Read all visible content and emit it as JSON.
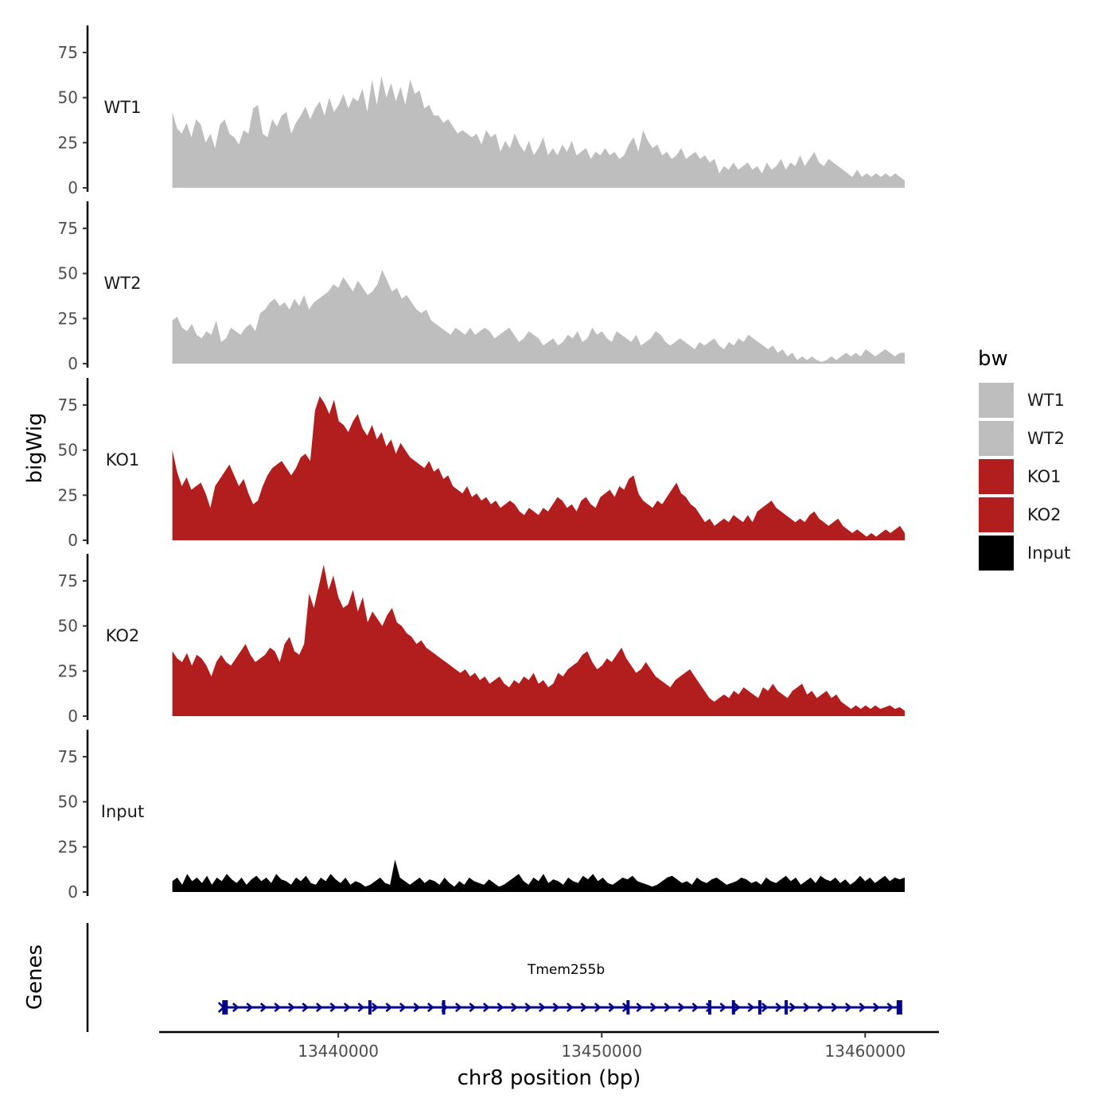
{
  "chart_data": {
    "type": "area",
    "title": "",
    "ylabel": "bigWig",
    "xlabel": "chr8 position (bp)",
    "genes_panel_label": "Genes",
    "ylim": [
      0,
      90
    ],
    "y_ticks": [
      0,
      25,
      50,
      75
    ],
    "x_range": [
      13433200,
      13462800
    ],
    "x_ticks": [
      13440000,
      13450000,
      13460000
    ],
    "x_tick_labels": [
      "13440000",
      "13450000",
      "13460000"
    ],
    "legend": {
      "title": "bw",
      "position": "right",
      "entries": [
        {
          "label": "WT1",
          "color": "#bebebe"
        },
        {
          "label": "WT2",
          "color": "#bebebe"
        },
        {
          "label": "KO1",
          "color": "#b21e1e"
        },
        {
          "label": "KO2",
          "color": "#b21e1e"
        },
        {
          "label": "Input",
          "color": "#000000"
        }
      ]
    },
    "tracks": [
      {
        "name": "WT1",
        "color": "#bebebe",
        "start": 13433700,
        "end": 13461500,
        "values": [
          42,
          33,
          30,
          36,
          28,
          38,
          35,
          25,
          30,
          22,
          35,
          38,
          30,
          28,
          24,
          32,
          30,
          44,
          46,
          30,
          28,
          38,
          34,
          40,
          42,
          30,
          36,
          40,
          45,
          38,
          44,
          48,
          40,
          50,
          42,
          46,
          52,
          44,
          50,
          48,
          55,
          42,
          60,
          46,
          62,
          50,
          58,
          48,
          56,
          46,
          60,
          52,
          54,
          44,
          46,
          40,
          40,
          36,
          38,
          34,
          30,
          32,
          30,
          28,
          30,
          24,
          32,
          28,
          30,
          20,
          26,
          22,
          30,
          24,
          20,
          26,
          18,
          22,
          28,
          18,
          22,
          18,
          24,
          20,
          26,
          18,
          20,
          22,
          16,
          20,
          18,
          22,
          18,
          20,
          16,
          18,
          24,
          28,
          20,
          32,
          26,
          22,
          24,
          18,
          20,
          16,
          18,
          22,
          16,
          18,
          20,
          16,
          18,
          14,
          16,
          8,
          12,
          10,
          14,
          10,
          12,
          14,
          10,
          12,
          8,
          14,
          10,
          12,
          16,
          10,
          14,
          12,
          18,
          12,
          16,
          20,
          14,
          12,
          16,
          14,
          12,
          10,
          8,
          6,
          10,
          6,
          8,
          6,
          8,
          6,
          8,
          6,
          8,
          6,
          4
        ]
      },
      {
        "name": "WT2",
        "color": "#bebebe",
        "start": 13433700,
        "end": 13461500,
        "values": [
          24,
          26,
          20,
          18,
          22,
          16,
          14,
          18,
          16,
          24,
          12,
          14,
          20,
          18,
          16,
          20,
          22,
          18,
          28,
          30,
          34,
          36,
          32,
          34,
          30,
          36,
          32,
          38,
          30,
          34,
          36,
          38,
          40,
          44,
          42,
          48,
          44,
          40,
          46,
          42,
          38,
          40,
          44,
          52,
          46,
          40,
          42,
          36,
          38,
          34,
          30,
          28,
          30,
          24,
          22,
          20,
          18,
          16,
          20,
          18,
          16,
          20,
          16,
          18,
          20,
          18,
          14,
          16,
          18,
          20,
          16,
          12,
          14,
          18,
          16,
          14,
          10,
          12,
          14,
          10,
          12,
          16,
          14,
          18,
          12,
          14,
          20,
          16,
          18,
          14,
          12,
          18,
          16,
          14,
          12,
          16,
          10,
          12,
          14,
          18,
          16,
          12,
          10,
          12,
          14,
          12,
          10,
          8,
          12,
          10,
          12,
          14,
          10,
          8,
          12,
          10,
          14,
          12,
          16,
          14,
          12,
          10,
          8,
          10,
          6,
          8,
          4,
          6,
          2,
          4,
          2,
          4,
          2,
          1,
          2,
          4,
          2,
          4,
          6,
          4,
          6,
          4,
          8,
          6,
          4,
          6,
          8,
          6,
          4,
          6,
          6
        ]
      },
      {
        "name": "KO1",
        "color": "#b21e1e",
        "start": 13433700,
        "end": 13461500,
        "values": [
          50,
          38,
          30,
          35,
          28,
          30,
          32,
          26,
          18,
          30,
          34,
          38,
          42,
          36,
          30,
          34,
          26,
          20,
          22,
          30,
          36,
          40,
          42,
          44,
          40,
          36,
          40,
          46,
          48,
          44,
          72,
          80,
          76,
          70,
          78,
          66,
          64,
          60,
          66,
          70,
          62,
          58,
          64,
          56,
          60,
          52,
          56,
          48,
          54,
          50,
          46,
          44,
          42,
          40,
          44,
          38,
          40,
          34,
          36,
          30,
          28,
          26,
          30,
          24,
          26,
          22,
          24,
          20,
          22,
          18,
          20,
          22,
          20,
          16,
          14,
          18,
          16,
          14,
          18,
          16,
          20,
          24,
          22,
          18,
          20,
          16,
          22,
          24,
          20,
          18,
          24,
          26,
          28,
          24,
          30,
          28,
          34,
          36,
          26,
          22,
          20,
          18,
          22,
          20,
          24,
          28,
          32,
          26,
          24,
          20,
          18,
          14,
          10,
          12,
          8,
          10,
          12,
          10,
          14,
          12,
          10,
          14,
          10,
          16,
          18,
          20,
          22,
          18,
          16,
          14,
          12,
          10,
          12,
          10,
          14,
          16,
          12,
          10,
          8,
          10,
          12,
          8,
          6,
          4,
          6,
          4,
          2,
          4,
          2,
          4,
          6,
          4,
          6,
          8,
          4
        ]
      },
      {
        "name": "KO2",
        "color": "#b21e1e",
        "start": 13433700,
        "end": 13461500,
        "values": [
          36,
          32,
          30,
          35,
          28,
          34,
          32,
          28,
          22,
          30,
          34,
          30,
          28,
          32,
          36,
          40,
          34,
          30,
          32,
          34,
          38,
          36,
          30,
          40,
          44,
          36,
          34,
          40,
          68,
          60,
          72,
          84,
          70,
          78,
          66,
          60,
          62,
          70,
          58,
          66,
          52,
          58,
          54,
          50,
          56,
          60,
          52,
          50,
          46,
          44,
          40,
          42,
          38,
          36,
          34,
          32,
          30,
          28,
          26,
          24,
          26,
          22,
          24,
          20,
          22,
          18,
          20,
          22,
          18,
          16,
          20,
          18,
          22,
          20,
          24,
          18,
          20,
          16,
          18,
          24,
          22,
          26,
          28,
          30,
          34,
          36,
          30,
          26,
          28,
          32,
          30,
          34,
          38,
          32,
          28,
          24,
          26,
          30,
          26,
          22,
          20,
          18,
          16,
          20,
          22,
          24,
          26,
          22,
          18,
          14,
          10,
          8,
          10,
          12,
          10,
          14,
          12,
          16,
          14,
          12,
          10,
          16,
          14,
          18,
          14,
          12,
          10,
          14,
          16,
          18,
          12,
          14,
          10,
          12,
          14,
          10,
          12,
          8,
          6,
          4,
          6,
          4,
          6,
          4,
          6,
          4,
          5,
          6,
          4,
          5,
          3
        ]
      },
      {
        "name": "Input",
        "color": "#000000",
        "start": 13433700,
        "end": 13461500,
        "values": [
          6,
          8,
          4,
          10,
          6,
          8,
          5,
          9,
          4,
          8,
          6,
          10,
          7,
          5,
          8,
          4,
          7,
          9,
          6,
          8,
          5,
          10,
          7,
          6,
          4,
          8,
          6,
          9,
          5,
          4,
          8,
          6,
          10,
          7,
          5,
          8,
          4,
          6,
          5,
          3,
          4,
          6,
          8,
          5,
          4,
          18,
          8,
          6,
          4,
          6,
          8,
          5,
          7,
          6,
          4,
          8,
          5,
          3,
          6,
          4,
          8,
          6,
          5,
          4,
          7,
          5,
          3,
          4,
          6,
          8,
          10,
          6,
          4,
          8,
          6,
          10,
          5,
          7,
          6,
          4,
          8,
          6,
          5,
          9,
          7,
          10,
          6,
          8,
          5,
          4,
          6,
          8,
          7,
          9,
          6,
          5,
          4,
          3,
          4,
          6,
          8,
          9,
          7,
          5,
          6,
          4,
          8,
          6,
          5,
          7,
          8,
          6,
          4,
          5,
          6,
          8,
          7,
          5,
          6,
          4,
          8,
          6,
          5,
          7,
          9,
          6,
          8,
          4,
          6,
          8,
          5,
          9,
          7,
          6,
          8,
          5,
          7,
          4,
          6,
          9,
          6,
          8,
          5,
          7,
          9,
          6,
          8,
          7,
          8
        ]
      }
    ],
    "gene": {
      "name": "Tmem255b",
      "color": "#00008b",
      "start": 13435700,
      "end": 13461300,
      "exons": [
        13435700,
        13441200,
        13444000,
        13451000,
        13454100,
        13455000,
        13456000,
        13457000,
        13461300
      ]
    }
  }
}
